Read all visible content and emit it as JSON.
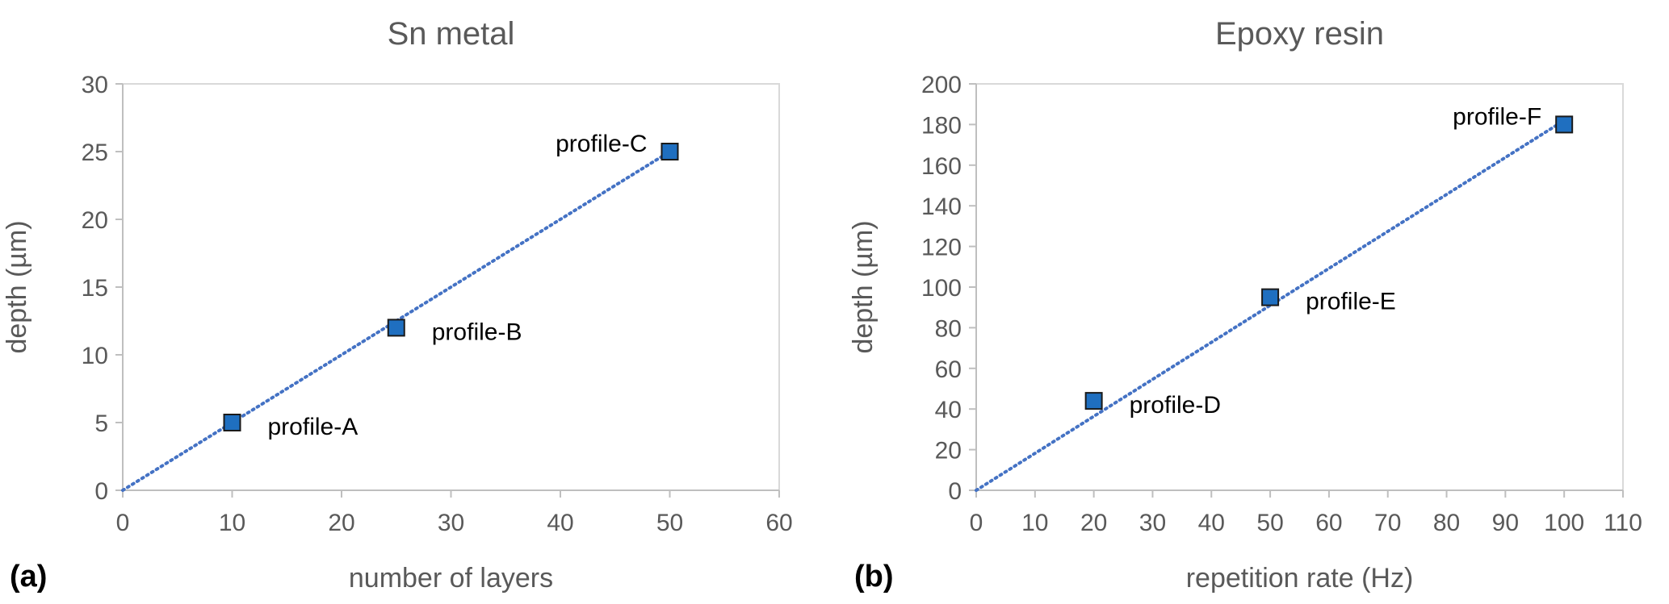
{
  "panels": [
    {
      "label": "(a)"
    },
    {
      "label": "(b)"
    }
  ],
  "colors": {
    "marker_fill": "#1f6fc0",
    "marker_edge": "#1a1a1a",
    "trendline": "#4472c4",
    "axis": "#bfbfbf",
    "tick_text": "#595959",
    "title_text": "#595959",
    "annotation_text": "#000000"
  },
  "chart_data": [
    {
      "type": "scatter",
      "title": "Sn metal",
      "xlabel": "number of layers",
      "ylabel": "depth (µm)",
      "xlim": [
        0,
        60
      ],
      "ylim": [
        0,
        30
      ],
      "xticks": [
        0,
        10,
        20,
        30,
        40,
        50,
        60
      ],
      "yticks": [
        0,
        5,
        10,
        15,
        20,
        25,
        30
      ],
      "grid": false,
      "series": [
        {
          "name": "depth",
          "x": [
            10,
            25,
            50
          ],
          "y": [
            5,
            12,
            25
          ],
          "labels": [
            "profile-A",
            "profile-B",
            "profile-C"
          ],
          "label_sides": [
            "right",
            "right",
            "left"
          ]
        }
      ],
      "trendline": {
        "style": "dotted",
        "x": [
          0,
          50
        ],
        "y": [
          0,
          25
        ]
      }
    },
    {
      "type": "scatter",
      "title": "Epoxy resin",
      "xlabel": "repetition rate (Hz)",
      "ylabel": "depth (µm)",
      "xlim": [
        0,
        110
      ],
      "ylim": [
        0,
        200
      ],
      "xticks": [
        0,
        10,
        20,
        30,
        40,
        50,
        60,
        70,
        80,
        90,
        100,
        110
      ],
      "yticks": [
        0,
        20,
        40,
        60,
        80,
        100,
        120,
        140,
        160,
        180,
        200
      ],
      "grid": false,
      "series": [
        {
          "name": "depth",
          "x": [
            20,
            50,
            100
          ],
          "y": [
            44,
            95,
            180
          ],
          "labels": [
            "profile-D",
            "profile-E",
            "profile-F"
          ],
          "label_sides": [
            "right",
            "right",
            "left"
          ]
        }
      ],
      "trendline": {
        "style": "dotted",
        "x": [
          0,
          100
        ],
        "y": [
          0,
          182
        ]
      }
    }
  ]
}
